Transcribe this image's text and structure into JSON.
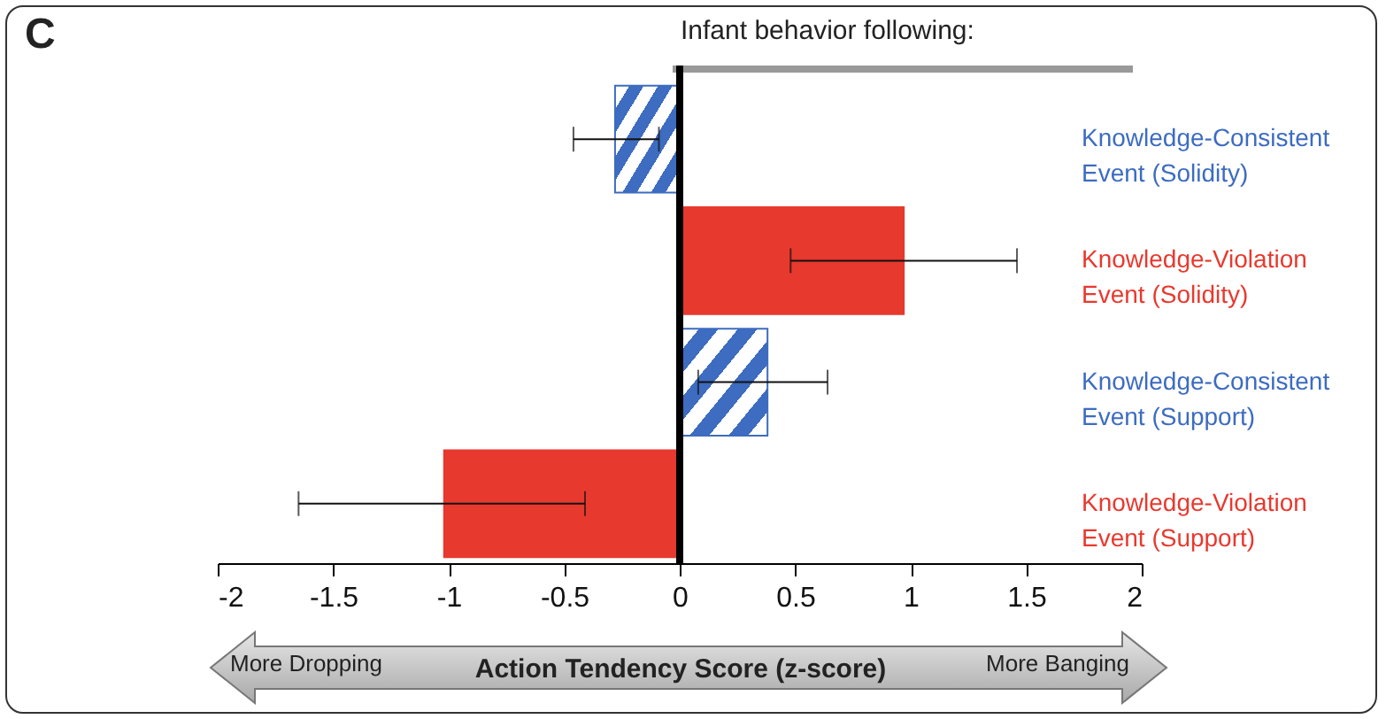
{
  "chart_data": {
    "type": "bar",
    "orientation": "horizontal",
    "title": "Infant behavior following:",
    "xlabel": "Action Tendency Score (z-score)",
    "annotations": [
      "C",
      "More Dropping",
      "More Banging"
    ],
    "categories": [
      "Knowledge-Consistent\nEvent (Solidity)",
      "Knowledge-Violation\nEvent (Solidity)",
      "Knowledge-Consistent\nEvent (Support)",
      "Knowledge-Violation\nEvent (Support)"
    ],
    "series": [
      {
        "color": "#3d6cc0",
        "values": [
          -0.28,
          null,
          0.38,
          null
        ],
        "errors": [
          [
            -0.46,
            -0.09
          ],
          null,
          [
            0.08,
            0.64
          ],
          null
        ]
      },
      {
        "color": "#e8392e",
        "values": [
          null,
          0.97,
          null,
          -1.02
        ],
        "errors": [
          null,
          [
            0.48,
            1.46
          ],
          null,
          [
            -1.65,
            -0.41
          ]
        ]
      }
    ],
    "xlim": [
      -2,
      2
    ],
    "xticks": [
      -2,
      -1.5,
      -1,
      -0.5,
      0,
      0.5,
      1,
      1.5,
      2
    ],
    "ref_lines": [
      {
        "axis": "x",
        "value": 0,
        "color": "#000000"
      }
    ]
  }
}
